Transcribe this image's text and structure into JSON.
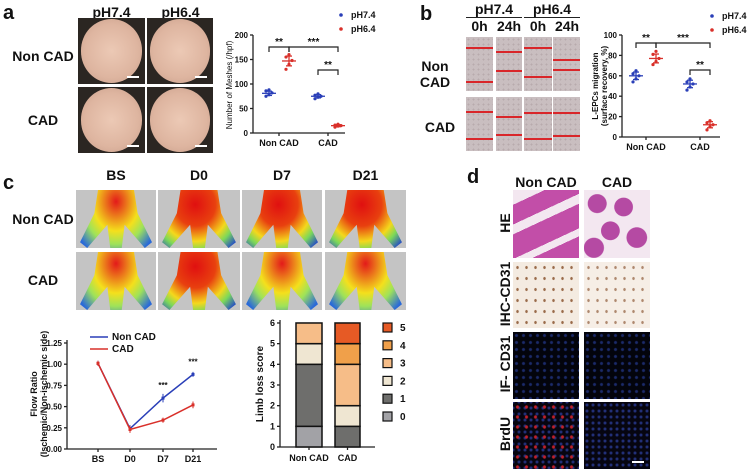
{
  "panel_a": {
    "label": "a",
    "columns": [
      "pH7.4",
      "pH6.4"
    ],
    "rows": [
      "Non CAD",
      "CAD"
    ],
    "chart": {
      "type": "scatter",
      "ylabel": "Number of Meshes (/hpf)",
      "ylim": [
        0,
        200
      ],
      "yticks": [
        "0",
        "50",
        "100",
        "150",
        "200"
      ],
      "categories": [
        "Non CAD",
        "CAD"
      ],
      "legend": [
        "pH7.4",
        "pH6.4"
      ],
      "colors": [
        "#2a3fb8",
        "#d9302a"
      ],
      "series": [
        {
          "name": "pH7.4",
          "points": [
            [
              75,
              78,
              82,
              86,
              88
            ],
            [
              70,
              73,
              75,
              77,
              80
            ]
          ],
          "means": [
            81,
            75
          ]
        },
        {
          "name": "pH6.4",
          "points": [
            [
              130,
              140,
              148,
              155,
              160
            ],
            [
              12,
              14,
              15,
              16,
              18
            ]
          ],
          "means": [
            147,
            15
          ]
        }
      ],
      "significance": [
        "**",
        "***",
        "**"
      ]
    }
  },
  "panel_b": {
    "label": "b",
    "columns": [
      "pH7.4",
      "pH6.4"
    ],
    "subcolumns": [
      "0h",
      "24h",
      "0h",
      "24h"
    ],
    "rows": [
      "Non CAD",
      "CAD"
    ],
    "chart": {
      "type": "scatter",
      "ylabel_line1": "L-EPCs  migration",
      "ylabel_line2": "(surface recovery, %)",
      "ylim": [
        0,
        100
      ],
      "yticks": [
        "0",
        "20",
        "40",
        "60",
        "80",
        "100"
      ],
      "categories": [
        "Non CAD",
        "CAD"
      ],
      "legend": [
        "pH7.4",
        "pH6.4"
      ],
      "series": [
        {
          "name": "pH7.4",
          "points": [
            [
              54,
              57,
              60,
              62,
              65
            ],
            [
              46,
              49,
              52,
              54,
              57
            ]
          ],
          "means": [
            60,
            52
          ]
        },
        {
          "name": "pH6.4",
          "points": [
            [
              71,
              74,
              77,
              81,
              84
            ],
            [
              7,
              10,
              12,
              14,
              16
            ]
          ],
          "means": [
            77,
            12
          ]
        }
      ],
      "significance": [
        "**",
        "***",
        "**"
      ]
    }
  },
  "panel_c": {
    "label": "c",
    "columns": [
      "BS",
      "D0",
      "D7",
      "D21"
    ],
    "rows": [
      "Non CAD",
      "CAD"
    ],
    "line_chart": {
      "type": "line",
      "ylabel_line1": "Flow Ratio",
      "ylabel_line2": "(Ischemic/Non-ischemic side)",
      "x": [
        "BS",
        "D0",
        "D7",
        "D21"
      ],
      "ylim": [
        0,
        1.25
      ],
      "yticks": [
        "0.00",
        "0.25",
        "0.50",
        "0.75",
        "1.00",
        "1.25"
      ],
      "series": [
        {
          "name": "Non CAD",
          "color": "#2a3fb8",
          "values": [
            1.01,
            0.24,
            0.6,
            0.88
          ],
          "err": [
            0.03,
            0.04,
            0.05,
            0.03
          ]
        },
        {
          "name": "CAD",
          "color": "#d9302a",
          "values": [
            1.01,
            0.23,
            0.34,
            0.52
          ],
          "err": [
            0.03,
            0.04,
            0.03,
            0.04
          ]
        }
      ],
      "annotations": [
        {
          "x": "D7",
          "text": "***"
        },
        {
          "x": "D21",
          "text": "***"
        }
      ]
    },
    "bar_chart": {
      "type": "bar",
      "ylabel": "Limb loss score",
      "ylim": [
        0,
        6
      ],
      "yticks": [
        "0",
        "1",
        "2",
        "3",
        "4",
        "5",
        "6"
      ],
      "categories": [
        "Non CAD",
        "CAD"
      ],
      "legend": [
        "5",
        "4",
        "3",
        "2",
        "1",
        "0"
      ],
      "colors": {
        "0": "#a2a2a6",
        "1": "#6e6e6c",
        "2": "#efe6d2",
        "3": "#f6bd88",
        "4": "#f0a04a",
        "5": "#e65a25"
      },
      "stacks": [
        {
          "category": "Non CAD",
          "counts": {
            "0": 1,
            "1": 3,
            "2": 1,
            "3": 1,
            "4": 0,
            "5": 0
          }
        },
        {
          "category": "CAD",
          "counts": {
            "0": 0,
            "1": 1,
            "2": 1,
            "3": 2,
            "4": 1,
            "5": 1
          }
        }
      ]
    }
  },
  "panel_d": {
    "label": "d",
    "columns": [
      "Non CAD",
      "CAD"
    ],
    "rows": [
      "HE",
      "IHC-CD31",
      "IF- CD31",
      "BrdU"
    ]
  }
}
